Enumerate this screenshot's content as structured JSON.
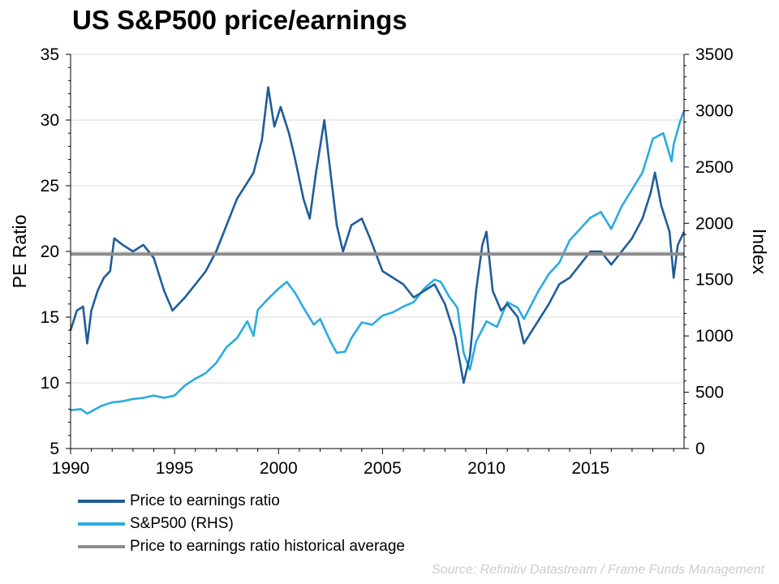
{
  "title": "US S&P500 price/earnings",
  "source": "Source: Refinitiv Datastream / Frame Funds Management",
  "chart_data": {
    "type": "line",
    "title": "US S&P500 price/earnings",
    "xlabel": "",
    "ylabel": "PE Ratio",
    "y2label": "Index",
    "xlim": [
      1990,
      2019.5
    ],
    "ylim": [
      5,
      35
    ],
    "y2lim": [
      0,
      3500
    ],
    "x_ticks": [
      "1990",
      "1995",
      "2000",
      "2005",
      "2010",
      "2015"
    ],
    "y_ticks": [
      "5",
      "10",
      "15",
      "20",
      "25",
      "30",
      "35"
    ],
    "y2_ticks": [
      "0",
      "500",
      "1000",
      "1500",
      "2000",
      "2500",
      "3000",
      "3500"
    ],
    "grid": "horizontal",
    "legend": "bottom-left",
    "series": [
      {
        "name": "Price to earnings ratio",
        "axis": "left",
        "color": "#1f5d99",
        "x": [
          1990.0,
          1990.3,
          1990.6,
          1990.8,
          1991.0,
          1991.3,
          1991.6,
          1991.9,
          1992.1,
          1992.5,
          1993.0,
          1993.5,
          1994.0,
          1994.5,
          1994.9,
          1995.5,
          1996.0,
          1996.5,
          1997.0,
          1997.5,
          1998.0,
          1998.4,
          1998.8,
          1999.2,
          1999.5,
          1999.8,
          2000.1,
          2000.5,
          2000.8,
          2001.2,
          2001.5,
          2001.8,
          2002.2,
          2002.5,
          2002.8,
          2003.1,
          2003.5,
          2004.0,
          2004.4,
          2005.0,
          2005.5,
          2006.0,
          2006.5,
          2007.0,
          2007.5,
          2008.0,
          2008.5,
          2008.9,
          2009.2,
          2009.5,
          2009.8,
          2010.0,
          2010.3,
          2010.7,
          2011.0,
          2011.5,
          2011.8,
          2012.2,
          2012.6,
          2013.0,
          2013.5,
          2014.0,
          2014.5,
          2015.0,
          2015.5,
          2016.0,
          2016.5,
          2017.0,
          2017.5,
          2017.9,
          2018.1,
          2018.4,
          2018.8,
          2019.0,
          2019.2,
          2019.5
        ],
        "y": [
          14.0,
          15.5,
          15.8,
          13.0,
          15.5,
          17.0,
          18.0,
          18.5,
          21.0,
          20.5,
          20.0,
          20.5,
          19.5,
          17.0,
          15.5,
          16.5,
          17.5,
          18.5,
          20.0,
          22.0,
          24.0,
          25.0,
          26.0,
          28.5,
          32.5,
          29.5,
          31.0,
          29.0,
          27.0,
          24.0,
          22.5,
          26.0,
          30.0,
          26.0,
          22.0,
          20.0,
          22.0,
          22.5,
          21.0,
          18.5,
          18.0,
          17.5,
          16.5,
          17.0,
          17.5,
          16.0,
          13.5,
          10.0,
          12.0,
          17.0,
          20.5,
          21.5,
          17.0,
          15.5,
          16.0,
          15.0,
          13.0,
          14.0,
          15.0,
          16.0,
          17.5,
          18.0,
          19.0,
          20.0,
          20.0,
          19.0,
          20.0,
          21.0,
          22.5,
          24.5,
          26.0,
          23.5,
          21.5,
          18.0,
          20.5,
          21.5
        ]
      },
      {
        "name": "S&P500 (RHS)",
        "axis": "right",
        "color": "#29abe2",
        "x": [
          1990.0,
          1990.5,
          1990.8,
          1991.0,
          1991.5,
          1992.0,
          1992.5,
          1993.0,
          1993.5,
          1994.0,
          1994.5,
          1995.0,
          1995.5,
          1996.0,
          1996.5,
          1997.0,
          1997.5,
          1998.0,
          1998.5,
          1998.8,
          1999.0,
          1999.5,
          2000.0,
          2000.4,
          2000.8,
          2001.2,
          2001.7,
          2002.0,
          2002.5,
          2002.8,
          2003.2,
          2003.5,
          2004.0,
          2004.5,
          2005.0,
          2005.5,
          2006.0,
          2006.5,
          2007.0,
          2007.5,
          2007.8,
          2008.2,
          2008.6,
          2008.9,
          2009.2,
          2009.5,
          2010.0,
          2010.5,
          2011.0,
          2011.5,
          2011.8,
          2012.5,
          2013.0,
          2013.5,
          2014.0,
          2014.5,
          2015.0,
          2015.5,
          2016.0,
          2016.5,
          2017.0,
          2017.5,
          2018.0,
          2018.5,
          2018.9,
          2019.0,
          2019.3,
          2019.5
        ],
        "y": [
          340,
          350,
          310,
          330,
          380,
          410,
          420,
          440,
          450,
          470,
          450,
          470,
          560,
          620,
          670,
          760,
          900,
          980,
          1130,
          1000,
          1230,
          1330,
          1420,
          1480,
          1380,
          1250,
          1100,
          1150,
          950,
          850,
          860,
          980,
          1120,
          1100,
          1180,
          1210,
          1260,
          1300,
          1420,
          1500,
          1480,
          1350,
          1250,
          850,
          700,
          950,
          1130,
          1080,
          1300,
          1250,
          1150,
          1400,
          1550,
          1650,
          1850,
          1950,
          2050,
          2100,
          1950,
          2150,
          2300,
          2450,
          2750,
          2800,
          2550,
          2700,
          2900,
          3000
        ]
      },
      {
        "name": "Price to earnings ratio historical average",
        "axis": "left",
        "color": "#8c8c8c",
        "x": [
          1990,
          2019.5
        ],
        "y": [
          19.8,
          19.8
        ]
      }
    ]
  }
}
